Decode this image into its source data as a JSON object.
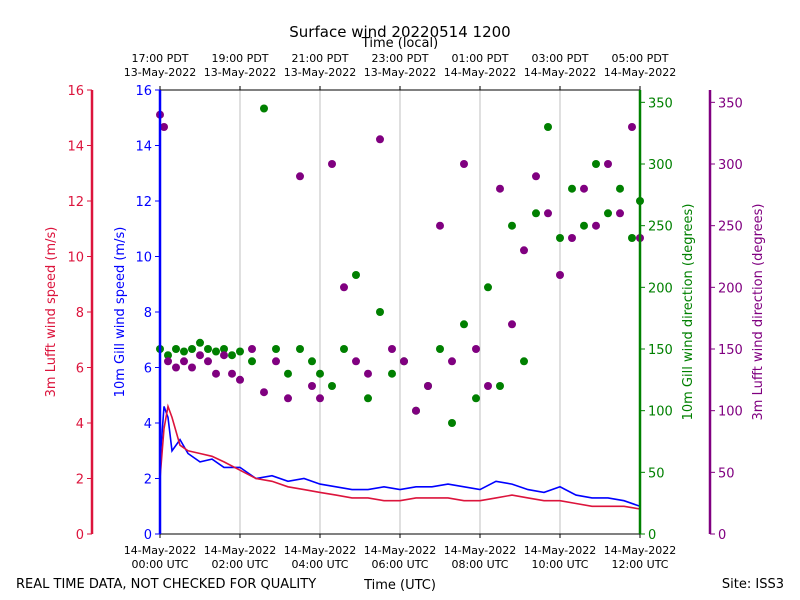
{
  "chart_data": {
    "type": "scatter",
    "title": "Surface wind 20220514 1200",
    "top_axis": {
      "label": "Time (local)",
      "ticks": [
        {
          "t": -7,
          "line1": "17:00 PDT",
          "line2": "13-May-2022"
        },
        {
          "t": -5,
          "line1": "19:00 PDT",
          "line2": "13-May-2022"
        },
        {
          "t": -3,
          "line1": "21:00 PDT",
          "line2": "13-May-2022"
        },
        {
          "t": -1,
          "line1": "23:00 PDT",
          "line2": "13-May-2022"
        },
        {
          "t": 1,
          "line1": "01:00 PDT",
          "line2": "14-May-2022"
        },
        {
          "t": 3,
          "line1": "03:00 PDT",
          "line2": "14-May-2022"
        },
        {
          "t": 5,
          "line1": "05:00 PDT",
          "line2": "14-May-2022"
        }
      ]
    },
    "bottom_axis": {
      "label": "Time (UTC)",
      "xlim": [
        0,
        12
      ],
      "ticks": [
        {
          "t": 0,
          "line1": "14-May-2022",
          "line2": "00:00 UTC"
        },
        {
          "t": 2,
          "line1": "14-May-2022",
          "line2": "02:00 UTC"
        },
        {
          "t": 4,
          "line1": "14-May-2022",
          "line2": "04:00 UTC"
        },
        {
          "t": 6,
          "line1": "14-May-2022",
          "line2": "06:00 UTC"
        },
        {
          "t": 8,
          "line1": "14-May-2022",
          "line2": "08:00 UTC"
        },
        {
          "t": 10,
          "line1": "14-May-2022",
          "line2": "10:00 UTC"
        },
        {
          "t": 12,
          "line1": "14-May-2022",
          "line2": "12:00 UTC"
        }
      ]
    },
    "left_axis_outer": {
      "label": "3m Lufft wind speed (m/s)",
      "ylim": [
        0,
        16
      ],
      "ticks": [
        0,
        2,
        4,
        6,
        8,
        10,
        12,
        14,
        16
      ],
      "color": "#dc143c"
    },
    "left_axis_inner": {
      "label": "10m Gill wind speed (m/s)",
      "ylim": [
        0,
        16
      ],
      "ticks": [
        0,
        2,
        4,
        6,
        8,
        10,
        12,
        14,
        16
      ],
      "color": "#0000ff"
    },
    "right_axis_inner": {
      "label": "10m Gill wind direction (degrees)",
      "ylim": [
        0,
        360
      ],
      "ticks": [
        0,
        50,
        100,
        150,
        200,
        250,
        300,
        350
      ],
      "color": "#008000"
    },
    "right_axis_outer": {
      "label": "3m Lufft wind direction (degrees)",
      "ylim": [
        0,
        360
      ],
      "ticks": [
        0,
        50,
        100,
        150,
        200,
        250,
        300,
        350
      ],
      "color": "#800080"
    },
    "grid": "vertical",
    "series": [
      {
        "name": "10m Gill wind speed",
        "kind": "line",
        "color": "#0000ff",
        "points": [
          [
            0,
            2.6
          ],
          [
            0.1,
            4.6
          ],
          [
            0.2,
            4.2
          ],
          [
            0.3,
            3.0
          ],
          [
            0.5,
            3.4
          ],
          [
            0.7,
            2.9
          ],
          [
            1.0,
            2.6
          ],
          [
            1.3,
            2.7
          ],
          [
            1.6,
            2.4
          ],
          [
            2.0,
            2.4
          ],
          [
            2.4,
            2.0
          ],
          [
            2.8,
            2.1
          ],
          [
            3.2,
            1.9
          ],
          [
            3.6,
            2.0
          ],
          [
            4.0,
            1.8
          ],
          [
            4.4,
            1.7
          ],
          [
            4.8,
            1.6
          ],
          [
            5.2,
            1.6
          ],
          [
            5.6,
            1.7
          ],
          [
            6.0,
            1.6
          ],
          [
            6.4,
            1.7
          ],
          [
            6.8,
            1.7
          ],
          [
            7.2,
            1.8
          ],
          [
            7.6,
            1.7
          ],
          [
            8.0,
            1.6
          ],
          [
            8.4,
            1.9
          ],
          [
            8.8,
            1.8
          ],
          [
            9.2,
            1.6
          ],
          [
            9.6,
            1.5
          ],
          [
            10.0,
            1.7
          ],
          [
            10.4,
            1.4
          ],
          [
            10.8,
            1.3
          ],
          [
            11.2,
            1.3
          ],
          [
            11.6,
            1.2
          ],
          [
            12.0,
            1.0
          ]
        ]
      },
      {
        "name": "3m Lufft wind speed",
        "kind": "line",
        "color": "#dc143c",
        "points": [
          [
            0,
            2.0
          ],
          [
            0.1,
            3.8
          ],
          [
            0.2,
            4.6
          ],
          [
            0.3,
            4.2
          ],
          [
            0.5,
            3.2
          ],
          [
            0.7,
            3.0
          ],
          [
            1.0,
            2.9
          ],
          [
            1.3,
            2.8
          ],
          [
            1.6,
            2.6
          ],
          [
            2.0,
            2.3
          ],
          [
            2.4,
            2.0
          ],
          [
            2.8,
            1.9
          ],
          [
            3.2,
            1.7
          ],
          [
            3.6,
            1.6
          ],
          [
            4.0,
            1.5
          ],
          [
            4.4,
            1.4
          ],
          [
            4.8,
            1.3
          ],
          [
            5.2,
            1.3
          ],
          [
            5.6,
            1.2
          ],
          [
            6.0,
            1.2
          ],
          [
            6.4,
            1.3
          ],
          [
            6.8,
            1.3
          ],
          [
            7.2,
            1.3
          ],
          [
            7.6,
            1.2
          ],
          [
            8.0,
            1.2
          ],
          [
            8.4,
            1.3
          ],
          [
            8.8,
            1.4
          ],
          [
            9.2,
            1.3
          ],
          [
            9.6,
            1.2
          ],
          [
            10.0,
            1.2
          ],
          [
            10.4,
            1.1
          ],
          [
            10.8,
            1.0
          ],
          [
            11.2,
            1.0
          ],
          [
            11.6,
            1.0
          ],
          [
            12.0,
            0.9
          ]
        ]
      },
      {
        "name": "10m Gill wind direction",
        "kind": "scatter",
        "color": "#008000",
        "points": [
          [
            0,
            150
          ],
          [
            0.2,
            145
          ],
          [
            0.4,
            150
          ],
          [
            0.6,
            148
          ],
          [
            0.8,
            150
          ],
          [
            1.0,
            155
          ],
          [
            1.2,
            150
          ],
          [
            1.4,
            148
          ],
          [
            1.6,
            150
          ],
          [
            1.8,
            145
          ],
          [
            2.0,
            148
          ],
          [
            2.3,
            140
          ],
          [
            2.6,
            345
          ],
          [
            2.9,
            150
          ],
          [
            3.2,
            130
          ],
          [
            3.5,
            150
          ],
          [
            3.8,
            140
          ],
          [
            4.0,
            130
          ],
          [
            4.3,
            120
          ],
          [
            4.6,
            150
          ],
          [
            4.9,
            210
          ],
          [
            5.2,
            110
          ],
          [
            5.5,
            180
          ],
          [
            5.8,
            130
          ],
          [
            6.1,
            140
          ],
          [
            6.4,
            100
          ],
          [
            6.7,
            120
          ],
          [
            7.0,
            150
          ],
          [
            7.3,
            90
          ],
          [
            7.6,
            170
          ],
          [
            7.9,
            110
          ],
          [
            8.2,
            200
          ],
          [
            8.5,
            120
          ],
          [
            8.8,
            250
          ],
          [
            9.1,
            140
          ],
          [
            9.4,
            260
          ],
          [
            9.7,
            330
          ],
          [
            10.0,
            240
          ],
          [
            10.3,
            280
          ],
          [
            10.6,
            250
          ],
          [
            10.9,
            300
          ],
          [
            11.2,
            260
          ],
          [
            11.5,
            280
          ],
          [
            11.8,
            240
          ],
          [
            12.0,
            270
          ]
        ]
      },
      {
        "name": "3m Lufft wind direction",
        "kind": "scatter",
        "color": "#800080",
        "points": [
          [
            0,
            340
          ],
          [
            0.1,
            330
          ],
          [
            0.2,
            140
          ],
          [
            0.4,
            135
          ],
          [
            0.6,
            140
          ],
          [
            0.8,
            135
          ],
          [
            1.0,
            145
          ],
          [
            1.2,
            140
          ],
          [
            1.4,
            130
          ],
          [
            1.6,
            145
          ],
          [
            1.8,
            130
          ],
          [
            2.0,
            125
          ],
          [
            2.3,
            150
          ],
          [
            2.6,
            115
          ],
          [
            2.9,
            140
          ],
          [
            3.2,
            110
          ],
          [
            3.5,
            290
          ],
          [
            3.8,
            120
          ],
          [
            4.0,
            110
          ],
          [
            4.3,
            300
          ],
          [
            4.6,
            200
          ],
          [
            4.9,
            140
          ],
          [
            5.2,
            130
          ],
          [
            5.5,
            320
          ],
          [
            5.8,
            150
          ],
          [
            6.1,
            140
          ],
          [
            6.4,
            100
          ],
          [
            6.7,
            120
          ],
          [
            7.0,
            250
          ],
          [
            7.3,
            140
          ],
          [
            7.6,
            300
          ],
          [
            7.9,
            150
          ],
          [
            8.2,
            120
          ],
          [
            8.5,
            280
          ],
          [
            8.8,
            170
          ],
          [
            9.1,
            230
          ],
          [
            9.4,
            290
          ],
          [
            9.7,
            260
          ],
          [
            10.0,
            210
          ],
          [
            10.3,
            240
          ],
          [
            10.6,
            280
          ],
          [
            10.9,
            250
          ],
          [
            11.2,
            300
          ],
          [
            11.5,
            260
          ],
          [
            11.8,
            330
          ],
          [
            12.0,
            240
          ]
        ]
      }
    ]
  },
  "footer": {
    "left": "REAL TIME DATA, NOT CHECKED FOR QUALITY",
    "right": "Site: ISS3"
  }
}
